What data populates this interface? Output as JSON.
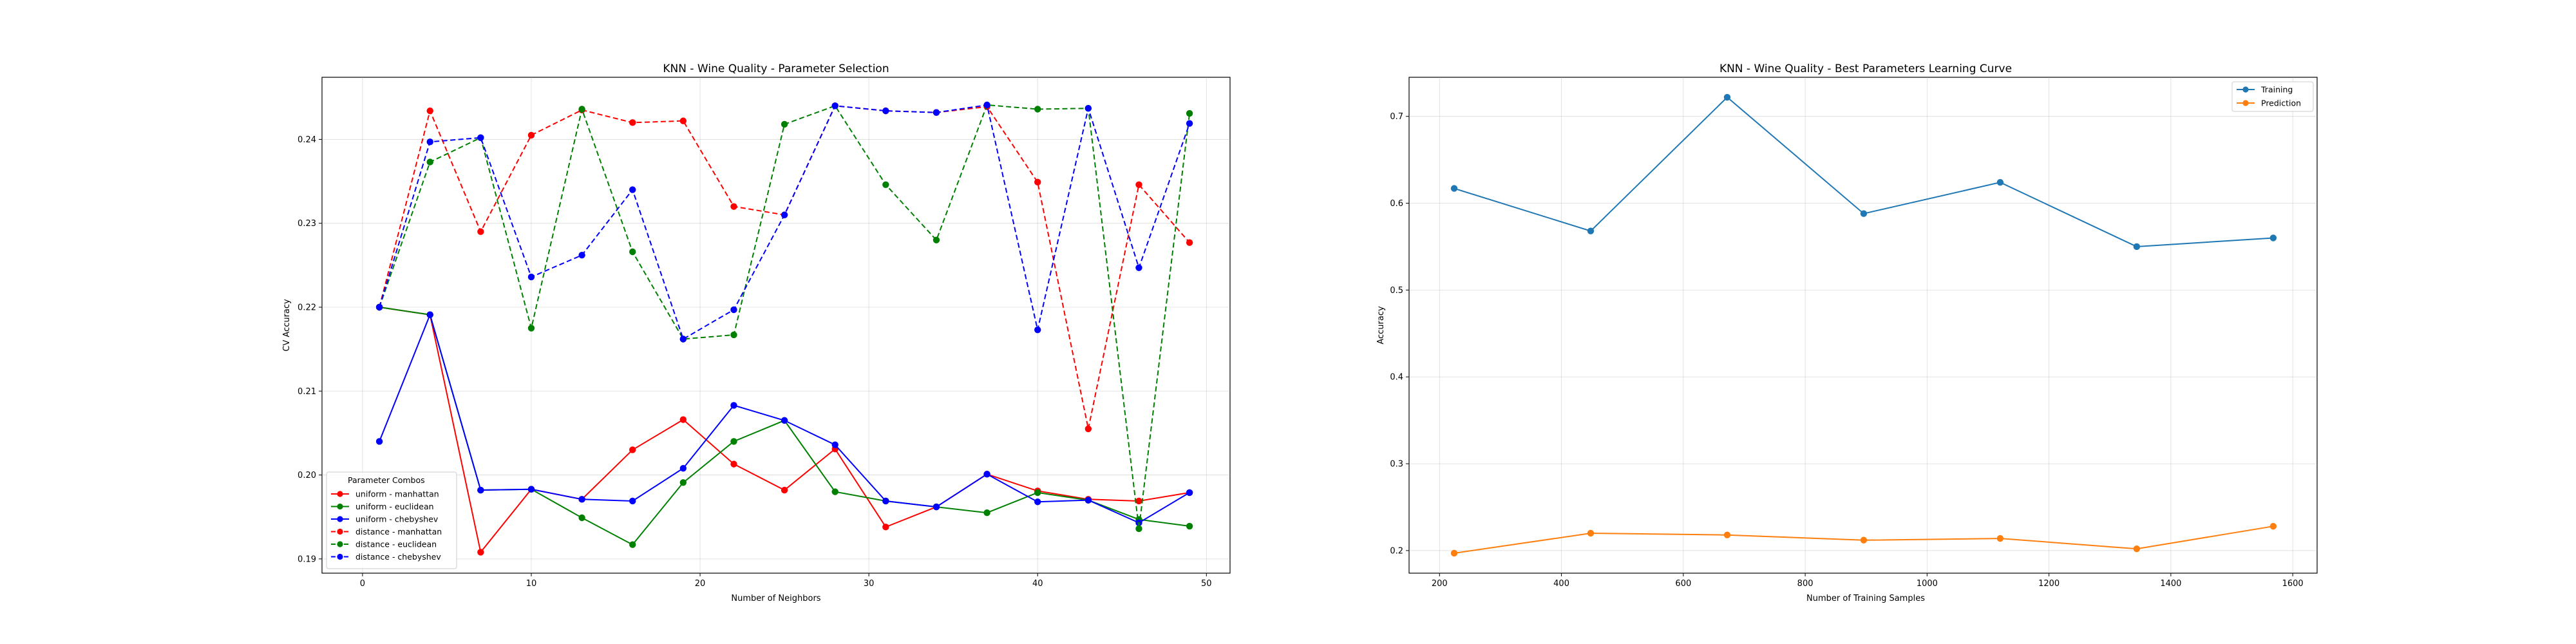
{
  "chart_data": [
    {
      "type": "line",
      "title": "KNN - Wine Quality - Parameter Selection",
      "xlabel": "Number of Neighbors",
      "ylabel": "CV Accuracy",
      "xlim": [
        -2.4,
        51.4
      ],
      "ylim": [
        0.1883,
        0.2474
      ],
      "xticks": [
        0,
        10,
        20,
        30,
        40,
        50
      ],
      "yticks": [
        0.19,
        0.2,
        0.21,
        0.22,
        0.23,
        0.24
      ],
      "ytick_labels": [
        "0.19",
        "0.20",
        "0.21",
        "0.22",
        "0.23",
        "0.24"
      ],
      "grid": true,
      "legend_title": "Parameter Combos",
      "legend_position": "lower-left",
      "x": [
        1,
        4,
        7,
        10,
        13,
        16,
        19,
        22,
        25,
        28,
        31,
        34,
        37,
        40,
        43,
        46,
        49
      ],
      "series": [
        {
          "name": "uniform - manhattan",
          "color": "#ff0000",
          "style": "solid",
          "values": [
            0.22,
            0.2191,
            0.1908,
            0.1983,
            0.1971,
            0.203,
            0.2066,
            0.2013,
            0.1982,
            0.2031,
            0.1938,
            0.1962,
            0.2001,
            0.1981,
            0.1971,
            0.1969,
            0.1979
          ]
        },
        {
          "name": "uniform - euclidean",
          "color": "#008000",
          "style": "solid",
          "values": [
            0.22,
            0.2191,
            0.1982,
            0.1983,
            0.1949,
            0.1917,
            0.1991,
            0.204,
            0.2065,
            0.198,
            0.1969,
            0.1962,
            0.1955,
            0.1979,
            0.197,
            0.1947,
            0.1939
          ]
        },
        {
          "name": "uniform - chebyshev",
          "color": "#0000ff",
          "style": "solid",
          "values": [
            0.204,
            0.2191,
            0.1982,
            0.1983,
            0.1971,
            0.1969,
            0.2008,
            0.2083,
            0.2065,
            0.2036,
            0.1969,
            0.1962,
            0.2001,
            0.1968,
            0.197,
            0.1943,
            0.1979
          ]
        },
        {
          "name": "distance - manhattan",
          "color": "#ff0000",
          "style": "dashed",
          "values": [
            0.22,
            0.2434,
            0.229,
            0.2405,
            0.2435,
            0.242,
            0.2422,
            0.232,
            0.231,
            0.244,
            0.2434,
            0.2432,
            0.2439,
            0.2349,
            0.2055,
            0.2346,
            0.2277
          ]
        },
        {
          "name": "distance - euclidean",
          "color": "#008000",
          "style": "dashed",
          "values": [
            0.22,
            0.2373,
            0.2402,
            0.2175,
            0.2436,
            0.2266,
            0.2162,
            0.2167,
            0.2418,
            0.244,
            0.2346,
            0.228,
            0.2441,
            0.2436,
            0.2437,
            0.1936,
            0.2431
          ]
        },
        {
          "name": "distance - chebyshev",
          "color": "#0000ff",
          "style": "dashed",
          "values": [
            0.22,
            0.2397,
            0.2402,
            0.2236,
            0.2262,
            0.234,
            0.2162,
            0.2197,
            0.231,
            0.244,
            0.2434,
            0.2432,
            0.2441,
            0.2173,
            0.2437,
            0.2247,
            0.2419
          ]
        }
      ]
    },
    {
      "type": "line",
      "title": "KNN - Wine Quality -  Best Parameters Learning Curve",
      "xlabel": "Number of Training Samples",
      "ylabel": "Accuracy",
      "xlim": [
        150,
        1640
      ],
      "ylim": [
        0.174,
        0.745
      ],
      "xticks": [
        200,
        400,
        600,
        800,
        1000,
        1200,
        1400,
        1600
      ],
      "yticks": [
        0.2,
        0.3,
        0.4,
        0.5,
        0.6,
        0.7
      ],
      "ytick_labels": [
        "0.2",
        "0.3",
        "0.4",
        "0.5",
        "0.6",
        "0.7"
      ],
      "grid": true,
      "legend_position": "upper-right",
      "x": [
        224,
        448,
        672,
        896,
        1120,
        1344,
        1568
      ],
      "series": [
        {
          "name": "Training",
          "color": "#1f77b4",
          "style": "solid",
          "values": [
            0.617,
            0.568,
            0.722,
            0.588,
            0.624,
            0.55,
            0.56
          ]
        },
        {
          "name": "Prediction",
          "color": "#ff7f0e",
          "style": "solid",
          "values": [
            0.197,
            0.22,
            0.218,
            0.212,
            0.214,
            0.202,
            0.228
          ]
        }
      ]
    }
  ]
}
